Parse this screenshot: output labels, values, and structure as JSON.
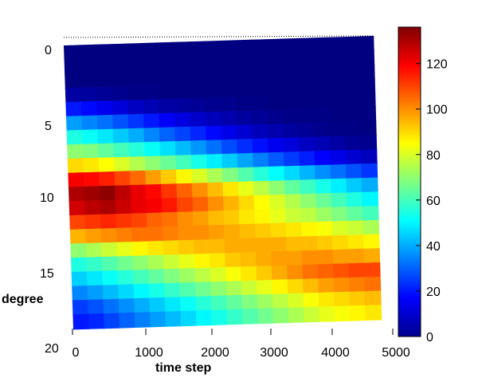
{
  "chart_data": {
    "type": "heatmap",
    "title": "",
    "xlabel": "time step",
    "ylabel": "degree",
    "x_ticks": [
      "0",
      "1000",
      "2000",
      "3000",
      "4000",
      "5000"
    ],
    "y_ticks": [
      "0",
      "5",
      "10",
      "15",
      "20"
    ],
    "xlim": [
      0,
      5000
    ],
    "ylim": [
      0,
      20
    ],
    "x_step_edges": [
      0,
      250,
      500,
      750,
      1000,
      1250,
      1500,
      1750,
      2000,
      2250,
      2500,
      2750,
      3000,
      3250,
      3500,
      3750,
      4000,
      4250,
      4500,
      4750,
      5000
    ],
    "degrees": [
      0,
      1,
      2,
      3,
      4,
      5,
      6,
      7,
      8,
      9,
      10,
      11,
      12,
      13,
      14,
      15,
      16,
      17,
      18,
      19
    ],
    "colorbar": {
      "colormap": "jet",
      "range": [
        0,
        136
      ],
      "ticks": [
        "0",
        "20",
        "40",
        "60",
        "80",
        "100",
        "120"
      ]
    },
    "values": [
      [
        0,
        0,
        0,
        0,
        0,
        0,
        0,
        0,
        0,
        0,
        0,
        0,
        0,
        0,
        0,
        0,
        0,
        0,
        0,
        0
      ],
      [
        0,
        0,
        0,
        0,
        0,
        0,
        0,
        0,
        0,
        0,
        0,
        0,
        0,
        0,
        0,
        0,
        0,
        0,
        0,
        0
      ],
      [
        0,
        0,
        0,
        0,
        0,
        0,
        0,
        0,
        0,
        0,
        0,
        0,
        0,
        0,
        0,
        0,
        0,
        0,
        0,
        0
      ],
      [
        5,
        4,
        3,
        2,
        1,
        1,
        0,
        0,
        0,
        0,
        0,
        0,
        0,
        0,
        0,
        0,
        0,
        0,
        0,
        0
      ],
      [
        20,
        18,
        15,
        12,
        9,
        7,
        5,
        4,
        3,
        2,
        2,
        1,
        1,
        0,
        0,
        0,
        0,
        0,
        0,
        0
      ],
      [
        38,
        35,
        32,
        28,
        24,
        20,
        16,
        13,
        10,
        8,
        6,
        4,
        3,
        2,
        1,
        1,
        1,
        0,
        0,
        0
      ],
      [
        55,
        52,
        48,
        44,
        40,
        35,
        30,
        26,
        22,
        18,
        14,
        11,
        8,
        6,
        4,
        3,
        2,
        1,
        1,
        0
      ],
      [
        70,
        68,
        64,
        60,
        56,
        52,
        47,
        42,
        37,
        32,
        27,
        23,
        19,
        15,
        12,
        9,
        7,
        5,
        3,
        2
      ],
      [
        90,
        88,
        85,
        80,
        75,
        70,
        65,
        60,
        54,
        49,
        44,
        39,
        34,
        29,
        25,
        21,
        17,
        14,
        11,
        8
      ],
      [
        120,
        118,
        115,
        110,
        105,
        98,
        92,
        86,
        80,
        74,
        68,
        62,
        56,
        51,
        46,
        41,
        36,
        32,
        28,
        24
      ],
      [
        130,
        132,
        134,
        128,
        122,
        118,
        112,
        106,
        100,
        94,
        88,
        82,
        76,
        70,
        64,
        59,
        54,
        49,
        44,
        40
      ],
      [
        125,
        128,
        130,
        126,
        122,
        120,
        116,
        110,
        106,
        100,
        95,
        90,
        85,
        80,
        75,
        70,
        65,
        60,
        55,
        50
      ],
      [
        110,
        112,
        114,
        112,
        110,
        106,
        104,
        100,
        98,
        94,
        92,
        88,
        86,
        82,
        78,
        76,
        72,
        68,
        64,
        60
      ],
      [
        95,
        98,
        100,
        102,
        104,
        104,
        102,
        100,
        100,
        98,
        96,
        94,
        92,
        90,
        88,
        86,
        84,
        80,
        78,
        74
      ],
      [
        70,
        74,
        78,
        82,
        86,
        88,
        90,
        92,
        94,
        94,
        96,
        96,
        96,
        96,
        94,
        94,
        92,
        90,
        88,
        86
      ],
      [
        55,
        58,
        62,
        66,
        70,
        74,
        78,
        82,
        86,
        88,
        92,
        94,
        96,
        98,
        98,
        100,
        100,
        98,
        98,
        96
      ],
      [
        45,
        48,
        52,
        56,
        60,
        64,
        68,
        72,
        76,
        80,
        84,
        88,
        92,
        96,
        100,
        104,
        106,
        108,
        110,
        110
      ],
      [
        35,
        38,
        42,
        46,
        50,
        54,
        58,
        62,
        66,
        70,
        74,
        78,
        82,
        86,
        90,
        94,
        98,
        100,
        102,
        104
      ],
      [
        25,
        28,
        32,
        36,
        40,
        44,
        48,
        52,
        56,
        60,
        64,
        68,
        72,
        76,
        80,
        84,
        88,
        90,
        92,
        94
      ],
      [
        20,
        22,
        26,
        30,
        34,
        38,
        42,
        46,
        50,
        54,
        58,
        62,
        66,
        70,
        74,
        78,
        82,
        84,
        86,
        88
      ]
    ]
  }
}
